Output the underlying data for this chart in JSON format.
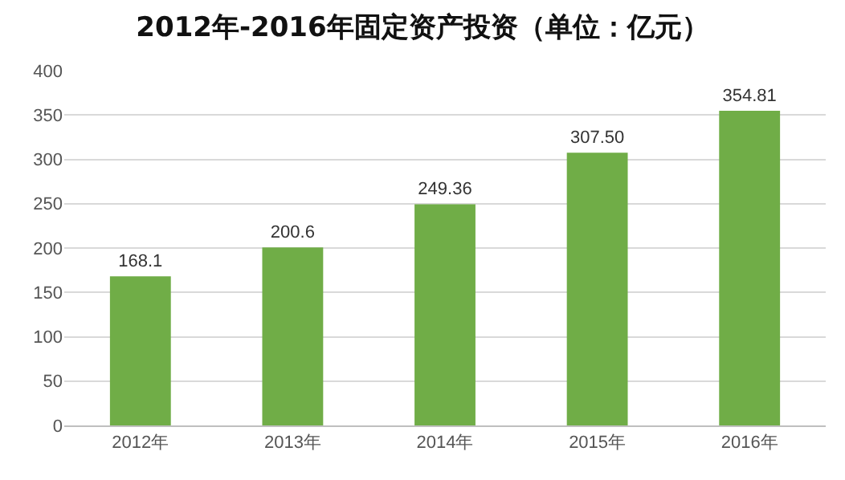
{
  "chart_data": {
    "type": "bar",
    "title": "2012年-2016年固定资产投资（单位：亿元）",
    "categories": [
      "2012年",
      "2013年",
      "2014年",
      "2015年",
      "2016年"
    ],
    "values": [
      168.1,
      200.6,
      249.36,
      307.5,
      354.81
    ],
    "value_labels": [
      "168.1",
      "200.6",
      "249.36",
      "307.50",
      "354.81"
    ],
    "color": "#70ad47",
    "ylim": [
      0,
      400
    ],
    "yticks": [
      0,
      50,
      100,
      150,
      200,
      250,
      300,
      350,
      400
    ],
    "grid": "y",
    "legend": false
  }
}
